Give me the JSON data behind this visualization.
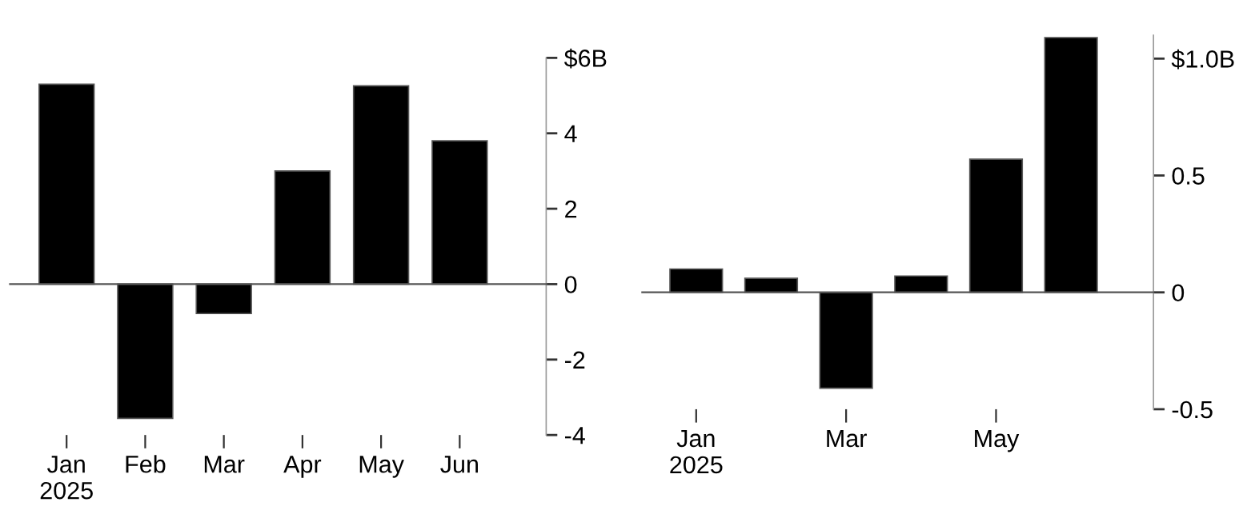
{
  "chart_data": [
    {
      "type": "bar",
      "categories": [
        "Jan\n2025",
        "Feb",
        "Mar",
        "Apr",
        "May",
        "Jun"
      ],
      "values": [
        5.3,
        -3.56,
        -0.78,
        3.0,
        5.26,
        3.8
      ],
      "color": "#000000",
      "ylim": [
        -4,
        6
      ],
      "yticks": [
        -4,
        -2,
        0,
        2,
        4,
        {
          "value": 6,
          "label": "$6B"
        }
      ],
      "legend": false
    },
    {
      "type": "bar",
      "categories": [
        "Jan\n2025",
        null,
        "Mar",
        null,
        "May",
        null
      ],
      "values": [
        0.1,
        0.06,
        -0.41,
        0.07,
        0.57,
        1.09
      ],
      "color": "#000000",
      "ylim": [
        -0.5,
        1.1
      ],
      "yticks": [
        -0.5,
        0,
        0.5,
        {
          "value": 1.0,
          "label": "$1.0B"
        }
      ],
      "legend": false
    }
  ]
}
